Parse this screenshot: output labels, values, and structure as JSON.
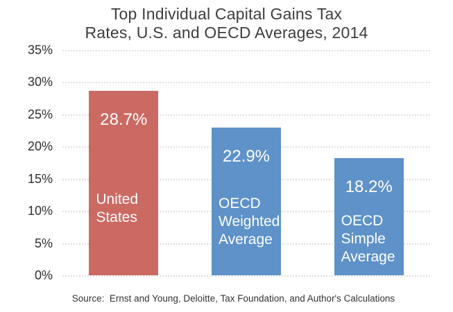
{
  "title": {
    "line1": "Top Individual Capital Gains Tax",
    "line2": "Rates, U.S. and OECD Averages, 2014"
  },
  "source": "Source:  Ernst and Young, Deloitte, Tax Foundation, and Author's Calculations",
  "chart_data": {
    "type": "bar",
    "title": "Top Individual Capital Gains Tax Rates, U.S. and OECD Averages, 2014",
    "categories": [
      "United States",
      "OECD Weighted Average",
      "OECD Simple Average"
    ],
    "values": [
      28.7,
      22.9,
      18.2
    ],
    "bars": [
      {
        "name": "united-states",
        "label_lines": [
          "United",
          "States"
        ],
        "value": 28.7,
        "value_label": "28.7%",
        "color": "#cb6963"
      },
      {
        "name": "oecd-weighted-average",
        "label_lines": [
          "OECD",
          "Weighted",
          "Average"
        ],
        "value": 22.9,
        "value_label": "22.9%",
        "color": "#5e92c8"
      },
      {
        "name": "oecd-simple-average",
        "label_lines": [
          "OECD",
          "Simple",
          "Average"
        ],
        "value": 18.2,
        "value_label": "18.2%",
        "color": "#5e92c8"
      }
    ],
    "xlabel": "",
    "ylabel": "",
    "ylim": [
      0,
      35
    ],
    "ytick_step": 5,
    "yticks": [
      "35%",
      "30%",
      "25%",
      "20%",
      "15%",
      "10%",
      "5%",
      "0%"
    ],
    "grid": "horizontal-dotted",
    "gridline_color": "#bfbfbf",
    "legend": "none",
    "label_text_color": "#ffffff",
    "title_color": "#3d3d3d"
  }
}
